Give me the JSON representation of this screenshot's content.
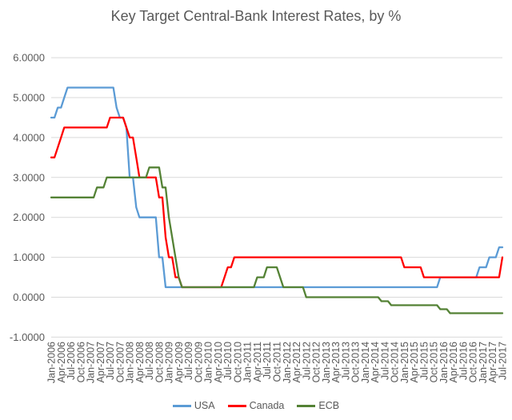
{
  "title": "Key Target Central-Bank Interest Rates, by %",
  "colors": {
    "background": "#ffffff",
    "text": "#595959",
    "gridline": "#d9d9d9",
    "usa_line": "#5b9bd5",
    "canada_line": "#ff0000",
    "ecb_line": "#548235"
  },
  "chart_data": {
    "type": "line",
    "title": "Key Target Central-Bank Interest Rates, by %",
    "xlabel": "",
    "ylabel": "",
    "x_start": "Jan-2006",
    "x_end": "Jul-2017",
    "frequency": "monthly",
    "grid": "horizontal",
    "legend_position": "bottom",
    "ylim": [
      -1,
      6
    ],
    "y_ticks": [
      {
        "label": "6.0000",
        "value": 6
      },
      {
        "label": "5.0000",
        "value": 5
      },
      {
        "label": "4.0000",
        "value": 4
      },
      {
        "label": "3.0000",
        "value": 3
      },
      {
        "label": "2.0000",
        "value": 2
      },
      {
        "label": "1.0000",
        "value": 1
      },
      {
        "label": "0.0000",
        "value": 0
      },
      {
        "label": "-1.0000",
        "value": -1
      }
    ],
    "x_tick_interval_months": 3,
    "x_tick_labels": [
      "Jan-2006",
      "Apr-2006",
      "Jul-2006",
      "Oct-2006",
      "Jan-2007",
      "Apr-2007",
      "Jul-2007",
      "Oct-2007",
      "Jan-2008",
      "Apr-2008",
      "Jul-2008",
      "Oct-2008",
      "Jan-2009",
      "Apr-2009",
      "Jul-2009",
      "Oct-2009",
      "Jan-2010",
      "Apr-2010",
      "Jul-2010",
      "Oct-2010",
      "Jan-2011",
      "Apr-2011",
      "Jul-2011",
      "Oct-2011",
      "Jan-2012",
      "Apr-2012",
      "Jul-2012",
      "Oct-2012",
      "Jan-2013",
      "Apr-2013",
      "Jul-2013",
      "Oct-2013",
      "Jan-2014",
      "Apr-2014",
      "Jul-2014",
      "Oct-2014",
      "Jan-2015",
      "Apr-2015",
      "Jul-2015",
      "Oct-2015",
      "Jan-2016",
      "Apr-2016",
      "Jul-2016",
      "Oct-2016",
      "Jan-2017",
      "Apr-2017",
      "Jul-2017"
    ],
    "series": [
      {
        "name": "USA",
        "color": "#5b9bd5",
        "values": [
          4.5,
          4.5,
          4.75,
          4.75,
          5,
          5.25,
          5.25,
          5.25,
          5.25,
          5.25,
          5.25,
          5.25,
          5.25,
          5.25,
          5.25,
          5.25,
          5.25,
          5.25,
          5.25,
          5.25,
          4.75,
          4.5,
          4.5,
          4.25,
          3,
          3,
          2.25,
          2,
          2,
          2,
          2,
          2,
          2,
          1,
          1,
          0.25,
          0.25,
          0.25,
          0.25,
          0.25,
          0.25,
          0.25,
          0.25,
          0.25,
          0.25,
          0.25,
          0.25,
          0.25,
          0.25,
          0.25,
          0.25,
          0.25,
          0.25,
          0.25,
          0.25,
          0.25,
          0.25,
          0.25,
          0.25,
          0.25,
          0.25,
          0.25,
          0.25,
          0.25,
          0.25,
          0.25,
          0.25,
          0.25,
          0.25,
          0.25,
          0.25,
          0.25,
          0.25,
          0.25,
          0.25,
          0.25,
          0.25,
          0.25,
          0.25,
          0.25,
          0.25,
          0.25,
          0.25,
          0.25,
          0.25,
          0.25,
          0.25,
          0.25,
          0.25,
          0.25,
          0.25,
          0.25,
          0.25,
          0.25,
          0.25,
          0.25,
          0.25,
          0.25,
          0.25,
          0.25,
          0.25,
          0.25,
          0.25,
          0.25,
          0.25,
          0.25,
          0.25,
          0.25,
          0.25,
          0.25,
          0.25,
          0.25,
          0.25,
          0.25,
          0.25,
          0.25,
          0.25,
          0.25,
          0.25,
          0.5,
          0.5,
          0.5,
          0.5,
          0.5,
          0.5,
          0.5,
          0.5,
          0.5,
          0.5,
          0.5,
          0.5,
          0.75,
          0.75,
          0.75,
          1,
          1,
          1,
          1.25,
          1.25
        ]
      },
      {
        "name": "Canada",
        "color": "#ff0000",
        "values": [
          3.5,
          3.5,
          3.75,
          4,
          4.25,
          4.25,
          4.25,
          4.25,
          4.25,
          4.25,
          4.25,
          4.25,
          4.25,
          4.25,
          4.25,
          4.25,
          4.25,
          4.25,
          4.5,
          4.5,
          4.5,
          4.5,
          4.5,
          4.25,
          4,
          4,
          3.5,
          3,
          3,
          3,
          3,
          3,
          3,
          2.5,
          2.5,
          1.5,
          1,
          1,
          0.5,
          0.5,
          0.25,
          0.25,
          0.25,
          0.25,
          0.25,
          0.25,
          0.25,
          0.25,
          0.25,
          0.25,
          0.25,
          0.25,
          0.25,
          0.5,
          0.75,
          0.75,
          1,
          1,
          1,
          1,
          1,
          1,
          1,
          1,
          1,
          1,
          1,
          1,
          1,
          1,
          1,
          1,
          1,
          1,
          1,
          1,
          1,
          1,
          1,
          1,
          1,
          1,
          1,
          1,
          1,
          1,
          1,
          1,
          1,
          1,
          1,
          1,
          1,
          1,
          1,
          1,
          1,
          1,
          1,
          1,
          1,
          1,
          1,
          1,
          1,
          1,
          1,
          1,
          0.75,
          0.75,
          0.75,
          0.75,
          0.75,
          0.75,
          0.5,
          0.5,
          0.5,
          0.5,
          0.5,
          0.5,
          0.5,
          0.5,
          0.5,
          0.5,
          0.5,
          0.5,
          0.5,
          0.5,
          0.5,
          0.5,
          0.5,
          0.5,
          0.5,
          0.5,
          0.5,
          0.5,
          0.5,
          0.5,
          1
        ]
      },
      {
        "name": "ECB",
        "color": "#548235",
        "values": [
          2.5,
          2.5,
          2.5,
          2.5,
          2.5,
          2.5,
          2.5,
          2.5,
          2.5,
          2.5,
          2.5,
          2.5,
          2.5,
          2.5,
          2.75,
          2.75,
          2.75,
          3,
          3,
          3,
          3,
          3,
          3,
          3,
          3,
          3,
          3,
          3,
          3,
          3,
          3.25,
          3.25,
          3.25,
          3.25,
          2.75,
          2.75,
          2,
          1.5,
          1,
          0.5,
          0.25,
          0.25,
          0.25,
          0.25,
          0.25,
          0.25,
          0.25,
          0.25,
          0.25,
          0.25,
          0.25,
          0.25,
          0.25,
          0.25,
          0.25,
          0.25,
          0.25,
          0.25,
          0.25,
          0.25,
          0.25,
          0.25,
          0.25,
          0.5,
          0.5,
          0.5,
          0.75,
          0.75,
          0.75,
          0.75,
          0.5,
          0.25,
          0.25,
          0.25,
          0.25,
          0.25,
          0.25,
          0.25,
          0,
          0,
          0,
          0,
          0,
          0,
          0,
          0,
          0,
          0,
          0,
          0,
          0,
          0,
          0,
          0,
          0,
          0,
          0,
          0,
          0,
          0,
          0,
          -0.1,
          -0.1,
          -0.1,
          -0.2,
          -0.2,
          -0.2,
          -0.2,
          -0.2,
          -0.2,
          -0.2,
          -0.2,
          -0.2,
          -0.2,
          -0.2,
          -0.2,
          -0.2,
          -0.2,
          -0.2,
          -0.3,
          -0.3,
          -0.3,
          -0.4,
          -0.4,
          -0.4,
          -0.4,
          -0.4,
          -0.4,
          -0.4,
          -0.4,
          -0.4,
          -0.4,
          -0.4,
          -0.4,
          -0.4,
          -0.4,
          -0.4,
          -0.4,
          -0.4
        ]
      }
    ]
  },
  "legend": {
    "usa_label": "USA",
    "canada_label": "Canada",
    "ecb_label": "ECB"
  }
}
